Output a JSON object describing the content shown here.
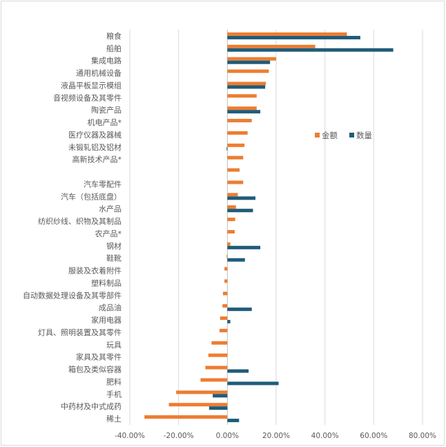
{
  "chart_data": {
    "type": "bar",
    "orientation": "horizontal",
    "title": "",
    "xlabel": "",
    "ylabel": "",
    "xlim": [
      -40,
      80
    ],
    "x_ticks": [
      -40,
      -20,
      0,
      20,
      40,
      60,
      80
    ],
    "x_tick_format": "percent_2dp",
    "grid": "vertical",
    "legend_placement": "right",
    "categories": [
      "粮食",
      "船舶",
      "集成电路",
      "通用机械设备",
      "液晶平板显示模组",
      "音视频设备及其零件",
      "陶瓷产品",
      "机电产品*",
      "医疗仪器及器械",
      "未锻轧铝及铝材",
      "高新技术产品*",
      "",
      "汽车零配件",
      "汽车（包括底盘）",
      "水产品",
      "纺织纱线、织物及其制品",
      "农产品*",
      "钢材",
      "鞋靴",
      "服装及衣着附件",
      "塑料制品",
      "自动数据处理设备及其零部件",
      "成品油",
      "家用电器",
      "灯具、照明装置及其零件",
      "玩具",
      "家具及其零件",
      "箱包及类似容器",
      "肥料",
      "手机",
      "中药材及中式成药",
      "稀土"
    ],
    "series": [
      {
        "name": "金额",
        "color": "#ed7d31",
        "values": [
          49,
          36,
          20,
          17,
          15.8,
          12,
          12,
          10,
          8.3,
          7,
          6.5,
          5,
          6.5,
          4.3,
          3.5,
          3.2,
          3,
          1.2,
          -0.3,
          -1.2,
          -1.2,
          -1.8,
          -2,
          -3,
          -3.2,
          -6.5,
          -7.8,
          -9,
          -11,
          -21,
          -24,
          -34
        ]
      },
      {
        "name": "数量",
        "color": "#1f5c7a",
        "values": [
          54.5,
          68,
          17.5,
          null,
          15.5,
          null,
          13.5,
          null,
          null,
          -0.3,
          null,
          null,
          null,
          11.5,
          10.5,
          null,
          null,
          13.5,
          7.2,
          null,
          null,
          null,
          10,
          1.2,
          null,
          null,
          null,
          8.7,
          21,
          -6,
          -7.5,
          4.8
        ]
      }
    ]
  }
}
